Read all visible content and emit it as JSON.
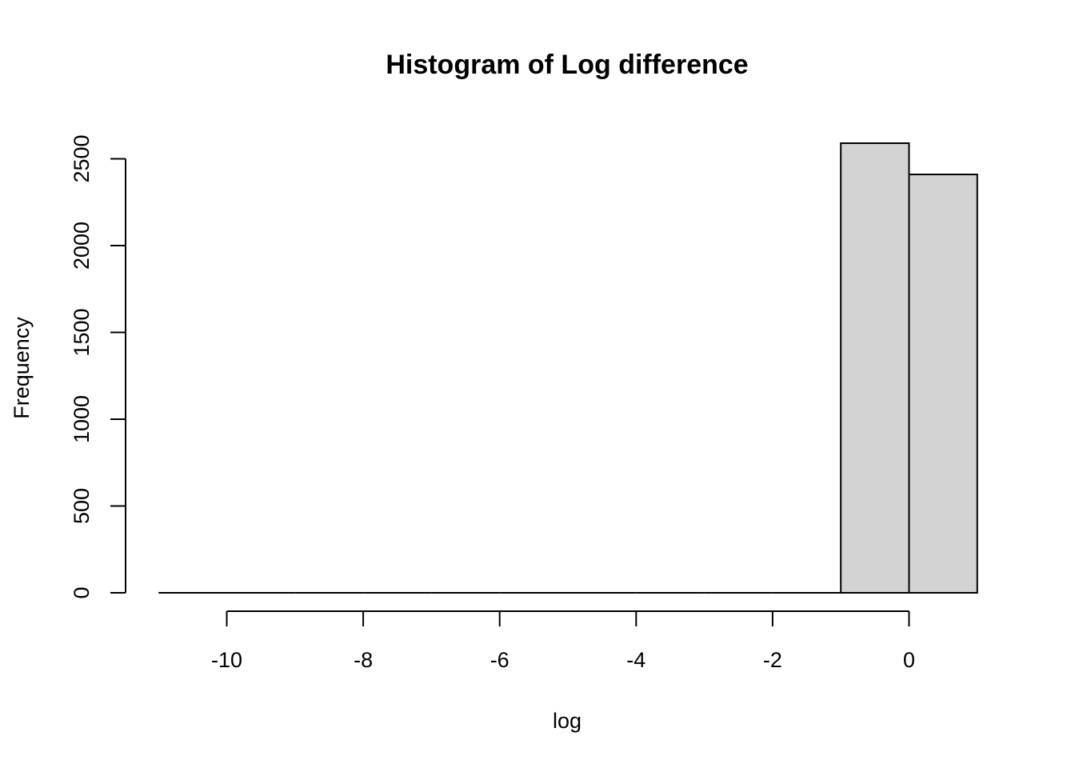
{
  "chart_data": {
    "type": "bar",
    "title": "Histogram of Log difference",
    "xlabel": "log",
    "ylabel": "Frequency",
    "bins": [
      {
        "from": -11,
        "to": -10,
        "count": 0
      },
      {
        "from": -10,
        "to": -9,
        "count": 0
      },
      {
        "from": -9,
        "to": -8,
        "count": 0
      },
      {
        "from": -8,
        "to": -7,
        "count": 0
      },
      {
        "from": -7,
        "to": -6,
        "count": 0
      },
      {
        "from": -6,
        "to": -5,
        "count": 0
      },
      {
        "from": -5,
        "to": -4,
        "count": 0
      },
      {
        "from": -4,
        "to": -3,
        "count": 0
      },
      {
        "from": -3,
        "to": -2,
        "count": 0
      },
      {
        "from": -2,
        "to": -1,
        "count": 0
      },
      {
        "from": -1,
        "to": 0,
        "count": 2590
      },
      {
        "from": 0,
        "to": 1,
        "count": 2410
      }
    ],
    "x_ticks": [
      {
        "value": -10,
        "label": "-10"
      },
      {
        "value": -8,
        "label": "-8"
      },
      {
        "value": -6,
        "label": "-6"
      },
      {
        "value": -4,
        "label": "-4"
      },
      {
        "value": -2,
        "label": "-2"
      },
      {
        "value": 0,
        "label": "0"
      }
    ],
    "y_ticks": [
      {
        "value": 0,
        "label": "0"
      },
      {
        "value": 500,
        "label": "500"
      },
      {
        "value": 1000,
        "label": "1000"
      },
      {
        "value": 1500,
        "label": "1500"
      },
      {
        "value": 2000,
        "label": "2000"
      },
      {
        "value": 2500,
        "label": "2500"
      }
    ],
    "xlim": [
      -11,
      1
    ],
    "ylim": [
      0,
      2590
    ],
    "grid": false,
    "colors": {
      "bar_fill": "#d3d3d3",
      "bar_stroke": "#000000"
    }
  }
}
